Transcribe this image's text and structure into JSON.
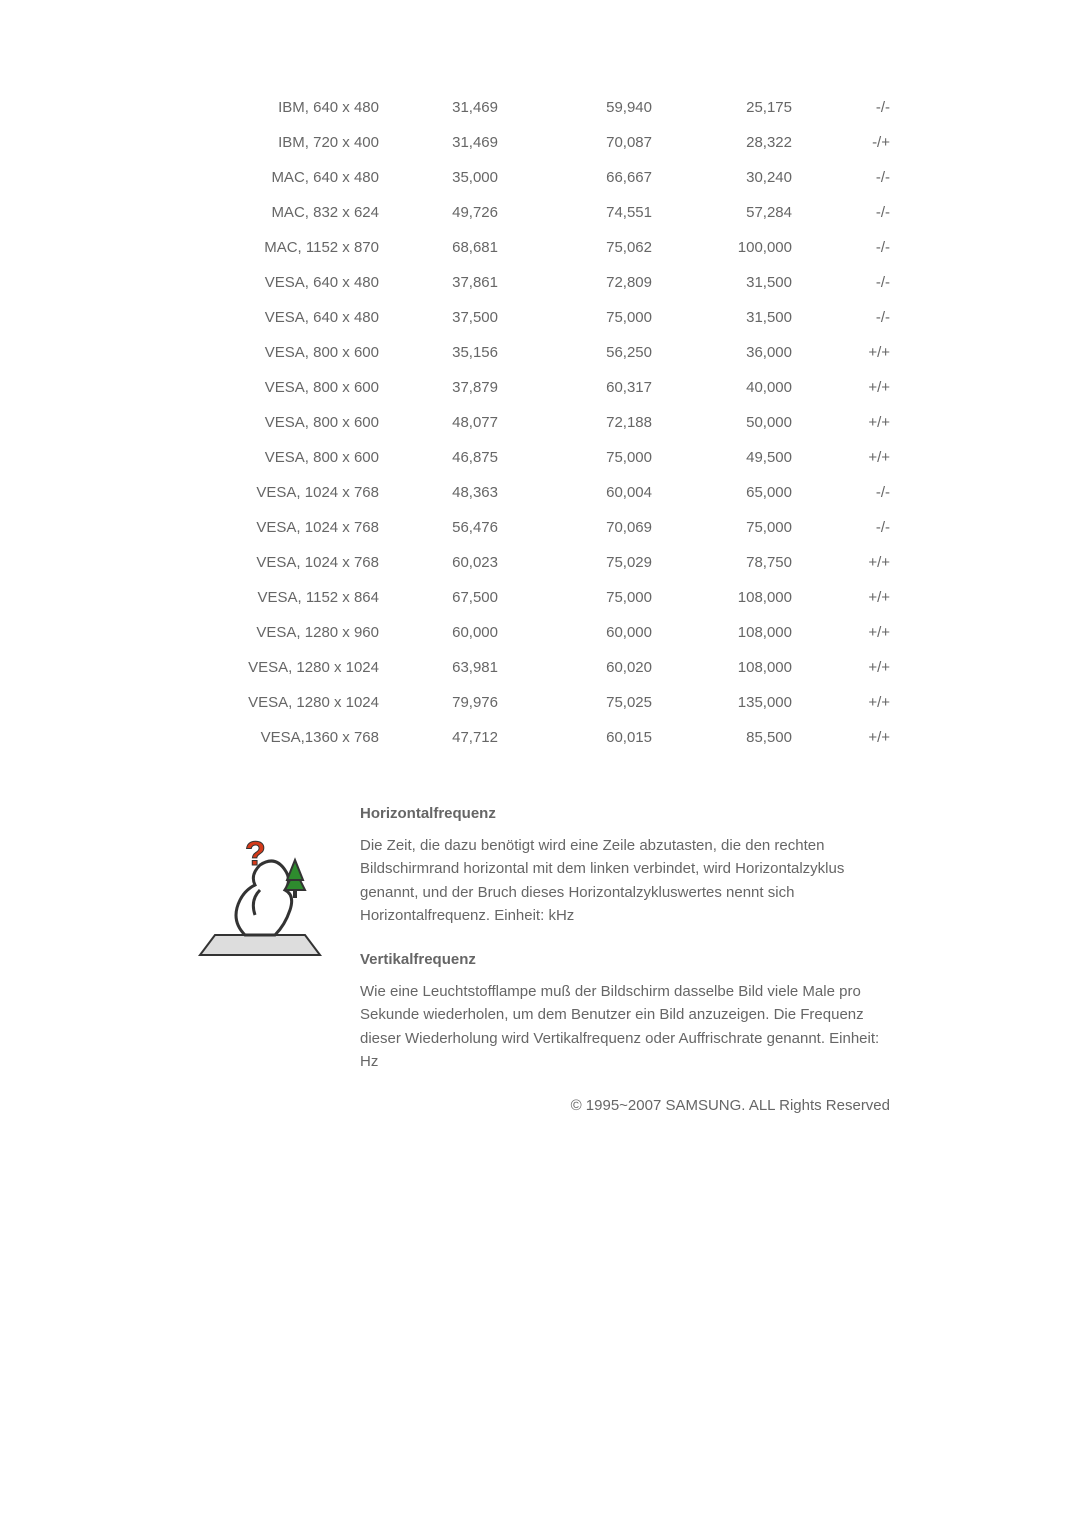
{
  "table": {
    "rows": [
      {
        "mode": "IBM, 640 x 480",
        "hfreq": "31,469",
        "pclk": "59,940",
        "vfreq": "25,175",
        "pol": "-/-"
      },
      {
        "mode": "IBM, 720 x 400",
        "hfreq": "31,469",
        "pclk": "70,087",
        "vfreq": "28,322",
        "pol": "-/+"
      },
      {
        "mode": "MAC, 640 x 480",
        "hfreq": "35,000",
        "pclk": "66,667",
        "vfreq": "30,240",
        "pol": "-/-"
      },
      {
        "mode": "MAC, 832 x 624",
        "hfreq": "49,726",
        "pclk": "74,551",
        "vfreq": "57,284",
        "pol": "-/-"
      },
      {
        "mode": "MAC, 1152 x 870",
        "hfreq": "68,681",
        "pclk": "75,062",
        "vfreq": "100,000",
        "pol": "-/-"
      },
      {
        "mode": "VESA, 640 x 480",
        "hfreq": "37,861",
        "pclk": "72,809",
        "vfreq": "31,500",
        "pol": "-/-"
      },
      {
        "mode": "VESA, 640 x 480",
        "hfreq": "37,500",
        "pclk": "75,000",
        "vfreq": "31,500",
        "pol": "-/-"
      },
      {
        "mode": "VESA, 800 x 600",
        "hfreq": "35,156",
        "pclk": "56,250",
        "vfreq": "36,000",
        "pol": "+/+"
      },
      {
        "mode": "VESA, 800 x 600",
        "hfreq": "37,879",
        "pclk": "60,317",
        "vfreq": "40,000",
        "pol": "+/+"
      },
      {
        "mode": "VESA, 800 x 600",
        "hfreq": "48,077",
        "pclk": "72,188",
        "vfreq": "50,000",
        "pol": "+/+"
      },
      {
        "mode": "VESA, 800 x 600",
        "hfreq": "46,875",
        "pclk": "75,000",
        "vfreq": "49,500",
        "pol": "+/+"
      },
      {
        "mode": "VESA, 1024 x 768",
        "hfreq": "48,363",
        "pclk": "60,004",
        "vfreq": "65,000",
        "pol": "-/-"
      },
      {
        "mode": "VESA, 1024 x 768",
        "hfreq": "56,476",
        "pclk": "70,069",
        "vfreq": "75,000",
        "pol": "-/-"
      },
      {
        "mode": "VESA, 1024 x 768",
        "hfreq": "60,023",
        "pclk": "75,029",
        "vfreq": "78,750",
        "pol": "+/+"
      },
      {
        "mode": "VESA, 1152 x 864",
        "hfreq": "67,500",
        "pclk": "75,000",
        "vfreq": "108,000",
        "pol": "+/+"
      },
      {
        "mode": "VESA, 1280 x 960",
        "hfreq": "60,000",
        "pclk": "60,000",
        "vfreq": "108,000",
        "pol": "+/+"
      },
      {
        "mode": "VESA, 1280 x 1024",
        "hfreq": "63,981",
        "pclk": "60,020",
        "vfreq": "108,000",
        "pol": "+/+"
      },
      {
        "mode": "VESA, 1280 x 1024",
        "hfreq": "79,976",
        "pclk": "75,025",
        "vfreq": "135,000",
        "pol": "+/+"
      },
      {
        "mode": "VESA,1360 x 768",
        "hfreq": "47,712",
        "pclk": "60,015",
        "vfreq": "85,500",
        "pol": "+/+"
      }
    ]
  },
  "info": {
    "h_title": "Horizontalfrequenz",
    "h_body": "Die Zeit, die dazu benötigt wird eine Zeile abzutasten, die den rechten Bildschirmrand horizontal mit dem linken verbindet, wird Horizontalzyklus genannt, und der Bruch dieses Horizontalzykluswertes nennt sich Horizontalfrequenz. Einheit: kHz",
    "v_title": "Vertikalfrequenz",
    "v_body": "Wie eine Leuchtstofflampe muß der Bildschirm dasselbe Bild viele Male pro Sekunde wiederholen, um dem Benutzer ein Bild anzuzeigen. Die Frequenz dieser Wiederholung wird Vertikalfrequenz oder Auffrischrate genannt. Einheit: Hz"
  },
  "copyright": "© 1995~2007 SAMSUNG. ALL Rights Reserved",
  "icon_colors": {
    "tree": "#2e8b2e",
    "question": "#d43a1a",
    "outline": "#333333",
    "face": "#ffffff"
  }
}
